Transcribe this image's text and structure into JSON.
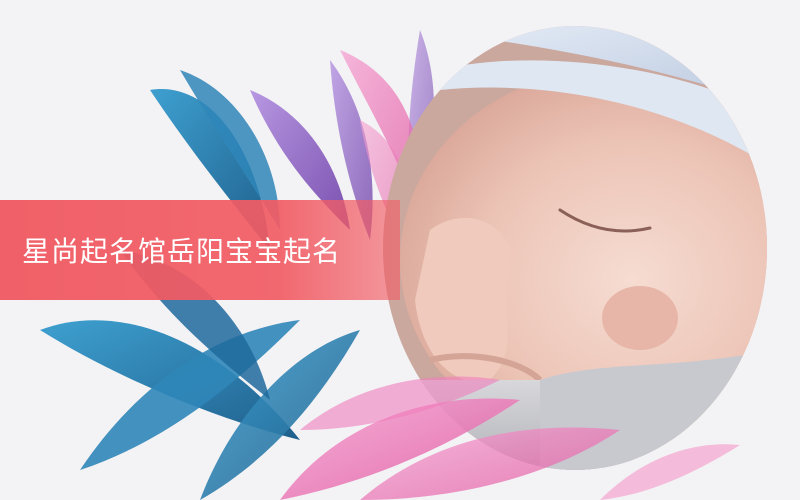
{
  "banner": {
    "title": "星尚起名馆岳阳宝宝起名",
    "color": "#f05860"
  },
  "image": {
    "subject": "sleeping-newborn-baby",
    "decoration": "feathers",
    "feather_colors": [
      "#2f86b8",
      "#8a5bbf",
      "#e86cb0"
    ],
    "background_color": "#f3f2f4"
  }
}
